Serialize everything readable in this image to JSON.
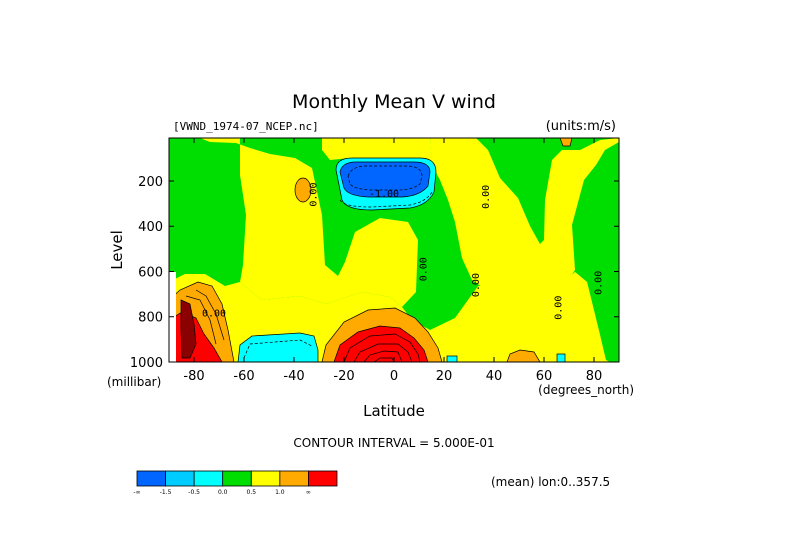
{
  "chart_data": {
    "type": "heatmap",
    "title": "Monthly Mean V wind",
    "dataset_label": "[VWND_1974-07_NCEP.nc]",
    "units_label": "(units:m/s)",
    "xlabel": "Latitude",
    "x_unit_label": "(degrees_north)",
    "ylabel": "Level",
    "y_unit_label": "(millibar)",
    "xlim": [
      -90,
      90
    ],
    "ylim": [
      1000,
      10
    ],
    "x_ticks": [
      -80,
      -60,
      -40,
      -20,
      0,
      20,
      40,
      60,
      80
    ],
    "x_tick_labels": [
      "-80",
      "-60",
      "-40",
      "-20",
      "0",
      "20",
      "40",
      "60",
      "80"
    ],
    "y_ticks": [
      200,
      400,
      600,
      800,
      1000
    ],
    "y_tick_labels": [
      "200",
      "400",
      "600",
      "800",
      "1000"
    ],
    "contour_interval_text": "CONTOUR INTERVAL = 5.000E-01",
    "mean_text": "(mean) lon:0..357.5",
    "colorbar": {
      "colors": [
        "#0066ff",
        "#00ccff",
        "#00ffff",
        "#00dd00",
        "#ffff00",
        "#ffaa00",
        "#ff0000"
      ],
      "labels": [
        "-∞",
        "-1.5",
        "-0.5",
        "0.0",
        "0.5",
        "1.0",
        "∞"
      ]
    },
    "contour_labels": [
      {
        "text": "0.00",
        "lat": -72,
        "level": 800,
        "vertical": false
      },
      {
        "text": "0.00",
        "lat": -31,
        "level": 260,
        "vertical": true
      },
      {
        "text": "0.00",
        "lat": 13,
        "level": 590,
        "vertical": true
      },
      {
        "text": "0.00",
        "lat": 38,
        "level": 270,
        "vertical": true
      },
      {
        "text": "0.00",
        "lat": 34,
        "level": 660,
        "vertical": true
      },
      {
        "text": "0.00",
        "lat": 67,
        "level": 760,
        "vertical": true
      },
      {
        "text": "0.00",
        "lat": 83,
        "level": 650,
        "vertical": true
      },
      {
        "text": "-1.00",
        "lat": -4,
        "level": 270,
        "vertical": false
      }
    ]
  }
}
